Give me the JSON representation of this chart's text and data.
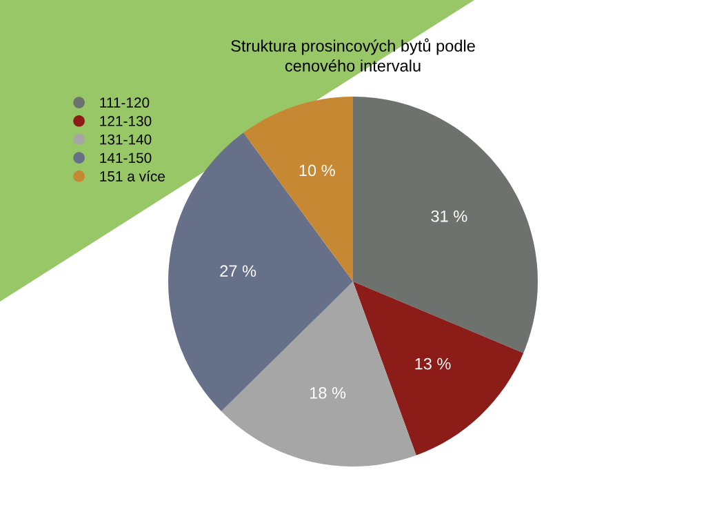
{
  "chart_data": {
    "type": "pie",
    "title": "Struktura prosincových bytů podle\ncenového intervalu",
    "categories": [
      "111-120",
      "121-130",
      "131-140",
      "141-150",
      "151 a více"
    ],
    "values": [
      31,
      13,
      18,
      27,
      10
    ],
    "value_labels": [
      "31 %",
      "13 %",
      "18 %",
      "27 %",
      "10 %"
    ],
    "colors": [
      "#6d726f",
      "#8b1c17",
      "#a6a6a6",
      "#667189",
      "#c78834"
    ],
    "legend": "top left"
  }
}
